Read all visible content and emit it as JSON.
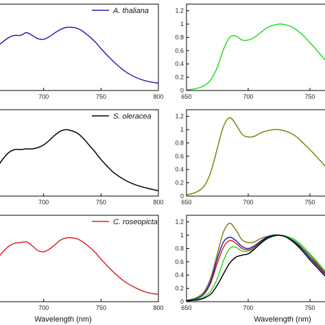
{
  "chart_data": [
    {
      "id": "p-left-top",
      "type": "line",
      "xlim": [
        650,
        800
      ],
      "ylim": [
        0,
        1.3
      ],
      "xticks": [
        700,
        750,
        800
      ],
      "xtick_labels": [
        "700",
        "750",
        "800"
      ],
      "yticks": [],
      "ytick_labels": [],
      "xlabel": "",
      "legend": "A. thaliana",
      "series": [
        {
          "color": "#1f1fb4",
          "x": [
            650,
            655,
            660,
            665,
            670,
            675,
            680,
            685,
            690,
            695,
            700,
            705,
            710,
            715,
            720,
            725,
            730,
            735,
            740,
            745,
            750,
            760,
            770,
            780,
            790,
            800
          ],
          "y": [
            0.55,
            0.6,
            0.67,
            0.74,
            0.8,
            0.83,
            0.83,
            0.87,
            0.83,
            0.78,
            0.77,
            0.81,
            0.87,
            0.92,
            0.95,
            0.95,
            0.93,
            0.88,
            0.81,
            0.73,
            0.63,
            0.45,
            0.3,
            0.2,
            0.14,
            0.11
          ]
        }
      ]
    },
    {
      "id": "p-right-top",
      "type": "line",
      "xlim": [
        650,
        770
      ],
      "ylim": [
        0,
        1.3
      ],
      "xticks": [
        650,
        700,
        750
      ],
      "xtick_labels": [
        "650",
        "700",
        "750"
      ],
      "yticks": [
        0,
        0.2,
        0.4,
        0.6,
        0.8,
        1,
        1.2
      ],
      "ytick_labels": [
        "0",
        "0.2",
        "0.4",
        "0.6",
        "0.8",
        "1",
        "1.2"
      ],
      "xlabel": "",
      "legend": "",
      "series": [
        {
          "color": "#22dd22",
          "x": [
            650,
            655,
            660,
            665,
            670,
            675,
            680,
            685,
            690,
            695,
            700,
            705,
            710,
            715,
            720,
            725,
            730,
            735,
            740,
            745,
            750,
            755,
            760,
            765,
            770
          ],
          "y": [
            0.01,
            0.02,
            0.04,
            0.08,
            0.17,
            0.35,
            0.62,
            0.8,
            0.82,
            0.76,
            0.76,
            0.8,
            0.87,
            0.94,
            0.98,
            1.0,
            0.99,
            0.96,
            0.9,
            0.82,
            0.72,
            0.62,
            0.51,
            0.41,
            0.33
          ]
        }
      ]
    },
    {
      "id": "p-left-mid",
      "type": "line",
      "xlim": [
        650,
        800
      ],
      "ylim": [
        0,
        1.3
      ],
      "xticks": [
        700,
        750,
        800
      ],
      "xtick_labels": [
        "700",
        "750",
        "800"
      ],
      "yticks": [],
      "ytick_labels": [],
      "xlabel": "",
      "legend": "S. oleracea",
      "series": [
        {
          "color": "#000000",
          "x": [
            650,
            655,
            660,
            665,
            670,
            675,
            680,
            685,
            690,
            695,
            700,
            705,
            710,
            715,
            720,
            725,
            730,
            735,
            740,
            745,
            750,
            760,
            770,
            780,
            790,
            800
          ],
          "y": [
            0.33,
            0.36,
            0.45,
            0.57,
            0.66,
            0.7,
            0.7,
            0.71,
            0.71,
            0.73,
            0.77,
            0.84,
            0.92,
            0.98,
            1.0,
            0.98,
            0.94,
            0.86,
            0.76,
            0.66,
            0.55,
            0.37,
            0.25,
            0.17,
            0.12,
            0.08
          ]
        }
      ]
    },
    {
      "id": "p-right-mid",
      "type": "line",
      "xlim": [
        650,
        770
      ],
      "ylim": [
        0,
        1.3
      ],
      "xticks": [
        650,
        700,
        750
      ],
      "xtick_labels": [
        "650",
        "700",
        "750"
      ],
      "yticks": [
        0,
        0.2,
        0.4,
        0.6,
        0.8,
        1,
        1.2
      ],
      "ytick_labels": [
        "0",
        "0.2",
        "0.4",
        "0.6",
        "0.8",
        "1",
        "1.2"
      ],
      "xlabel": "",
      "legend": "",
      "series": [
        {
          "color": "#808010",
          "x": [
            650,
            655,
            660,
            665,
            670,
            675,
            680,
            685,
            690,
            695,
            700,
            705,
            710,
            715,
            720,
            725,
            730,
            735,
            740,
            745,
            750,
            755,
            760,
            765,
            770
          ],
          "y": [
            0.02,
            0.04,
            0.08,
            0.17,
            0.38,
            0.72,
            1.05,
            1.18,
            1.08,
            0.93,
            0.89,
            0.9,
            0.95,
            0.98,
            1.0,
            1.0,
            0.98,
            0.94,
            0.88,
            0.79,
            0.7,
            0.6,
            0.5,
            0.4,
            0.32
          ]
        }
      ]
    },
    {
      "id": "p-left-bot",
      "type": "line",
      "xlim": [
        650,
        800
      ],
      "ylim": [
        0,
        1.3
      ],
      "xticks": [
        700,
        750,
        800
      ],
      "xtick_labels": [
        "700",
        "750",
        "800"
      ],
      "yticks": [],
      "ytick_labels": [],
      "xlabel": "Wavelength (nm)",
      "legend": "C. roseopicta",
      "series": [
        {
          "color": "#dd2222",
          "x": [
            650,
            655,
            660,
            665,
            670,
            675,
            680,
            685,
            690,
            695,
            700,
            705,
            710,
            715,
            720,
            725,
            730,
            735,
            740,
            745,
            750,
            760,
            770,
            780,
            790,
            800
          ],
          "y": [
            0.52,
            0.58,
            0.66,
            0.76,
            0.84,
            0.88,
            0.89,
            0.9,
            0.84,
            0.77,
            0.75,
            0.79,
            0.86,
            0.93,
            0.96,
            0.96,
            0.94,
            0.89,
            0.82,
            0.74,
            0.64,
            0.46,
            0.31,
            0.21,
            0.14,
            0.11
          ]
        }
      ]
    },
    {
      "id": "p-right-bot",
      "type": "line",
      "xlim": [
        650,
        770
      ],
      "ylim": [
        0,
        1.3
      ],
      "xticks": [
        650,
        700,
        750
      ],
      "xtick_labels": [
        "650",
        "700",
        "750"
      ],
      "yticks": [
        0,
        0.2,
        0.4,
        0.6,
        0.8,
        1,
        1.2
      ],
      "ytick_labels": [
        "0",
        "0.2",
        "0.4",
        "0.6",
        "0.8",
        "1",
        "1.2"
      ],
      "xlabel": "Wavelength (nm)",
      "legend": "",
      "series": [
        {
          "color": "#808010",
          "x": [
            650,
            655,
            660,
            665,
            670,
            675,
            680,
            685,
            690,
            695,
            700,
            705,
            710,
            715,
            720,
            725,
            730,
            735,
            740,
            745,
            750,
            755,
            760,
            765,
            770
          ],
          "y": [
            0.02,
            0.04,
            0.08,
            0.17,
            0.38,
            0.72,
            1.05,
            1.18,
            1.08,
            0.93,
            0.89,
            0.9,
            0.95,
            0.98,
            1.0,
            1.0,
            0.98,
            0.94,
            0.88,
            0.79,
            0.7,
            0.6,
            0.5,
            0.4,
            0.32
          ]
        },
        {
          "color": "#dd2222",
          "x": [
            650,
            655,
            660,
            665,
            670,
            675,
            680,
            685,
            690,
            695,
            700,
            705,
            710,
            715,
            720,
            725,
            730,
            735,
            740,
            745,
            750,
            755,
            760,
            765,
            770
          ],
          "y": [
            0.02,
            0.03,
            0.06,
            0.13,
            0.3,
            0.58,
            0.82,
            0.92,
            0.88,
            0.8,
            0.78,
            0.82,
            0.9,
            0.96,
            0.99,
            1.0,
            0.98,
            0.93,
            0.86,
            0.77,
            0.67,
            0.58,
            0.48,
            0.38,
            0.3
          ]
        },
        {
          "color": "#1f1fb4",
          "x": [
            650,
            655,
            660,
            665,
            670,
            675,
            680,
            685,
            690,
            695,
            700,
            705,
            710,
            715,
            720,
            725,
            730,
            735,
            740,
            745,
            750,
            755,
            760,
            765,
            770
          ],
          "y": [
            0.02,
            0.03,
            0.06,
            0.14,
            0.33,
            0.65,
            0.9,
            0.97,
            0.92,
            0.83,
            0.8,
            0.84,
            0.91,
            0.97,
            1.0,
            1.0,
            0.98,
            0.93,
            0.86,
            0.77,
            0.66,
            0.56,
            0.46,
            0.37,
            0.29
          ]
        },
        {
          "color": "#22dd22",
          "x": [
            650,
            655,
            660,
            665,
            670,
            675,
            680,
            685,
            690,
            695,
            700,
            705,
            710,
            715,
            720,
            725,
            730,
            735,
            740,
            745,
            750,
            755,
            760,
            765,
            770
          ],
          "y": [
            0.01,
            0.02,
            0.04,
            0.08,
            0.17,
            0.35,
            0.62,
            0.8,
            0.82,
            0.76,
            0.76,
            0.8,
            0.87,
            0.94,
            0.98,
            1.0,
            0.99,
            0.96,
            0.9,
            0.82,
            0.72,
            0.62,
            0.51,
            0.41,
            0.33
          ]
        },
        {
          "color": "#000000",
          "x": [
            650,
            655,
            660,
            665,
            670,
            675,
            680,
            685,
            690,
            695,
            700,
            705,
            710,
            715,
            720,
            725,
            730,
            735,
            740,
            745,
            750,
            755,
            760,
            765,
            770
          ],
          "y": [
            0.01,
            0.02,
            0.03,
            0.06,
            0.12,
            0.25,
            0.42,
            0.58,
            0.67,
            0.7,
            0.72,
            0.79,
            0.88,
            0.95,
            0.99,
            1.0,
            0.98,
            0.92,
            0.84,
            0.74,
            0.63,
            0.53,
            0.43,
            0.34,
            0.27
          ]
        }
      ]
    }
  ]
}
